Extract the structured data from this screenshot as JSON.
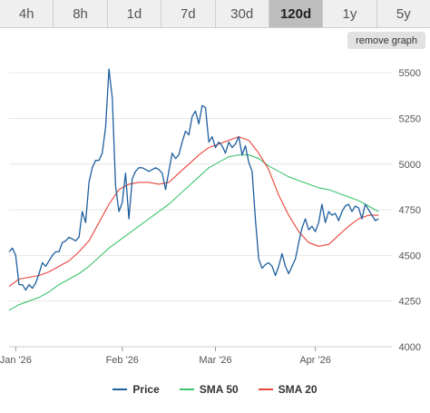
{
  "tabs": [
    {
      "label": "4h",
      "active": false
    },
    {
      "label": "8h",
      "active": false
    },
    {
      "label": "1d",
      "active": false
    },
    {
      "label": "7d",
      "active": false
    },
    {
      "label": "30d",
      "active": false
    },
    {
      "label": "120d",
      "active": true
    },
    {
      "label": "1y",
      "active": false
    },
    {
      "label": "5y",
      "active": false
    }
  ],
  "remove_graph_label": "remove graph",
  "colors": {
    "price": "#1f5f9e",
    "sma50": "#3cc46e",
    "sma20": "#e8453c",
    "grid": "#e6e6e6"
  },
  "chart_data": {
    "type": "line",
    "title": "",
    "xlabel": "",
    "ylabel": "",
    "ylim": [
      4000,
      5600
    ],
    "y_ticks": [
      4000,
      4250,
      4500,
      4750,
      5000,
      5250,
      5500
    ],
    "x_ticks": [
      {
        "label": "Jan '26",
        "x": 2
      },
      {
        "label": "Feb '26",
        "x": 34
      },
      {
        "label": "Mar '26",
        "x": 62
      },
      {
        "label": "Apr '26",
        "x": 92
      }
    ],
    "xlim": [
      0,
      115
    ],
    "legend_position": "bottom",
    "grid": true,
    "series": [
      {
        "name": "Price",
        "color": "#1f5f9e",
        "points": [
          [
            0,
            4520
          ],
          [
            1,
            4540
          ],
          [
            2,
            4500
          ],
          [
            3,
            4340
          ],
          [
            4,
            4340
          ],
          [
            5,
            4310
          ],
          [
            6,
            4340
          ],
          [
            7,
            4320
          ],
          [
            8,
            4350
          ],
          [
            9,
            4400
          ],
          [
            10,
            4460
          ],
          [
            11,
            4440
          ],
          [
            12,
            4470
          ],
          [
            13,
            4500
          ],
          [
            14,
            4520
          ],
          [
            15,
            4520
          ],
          [
            16,
            4570
          ],
          [
            17,
            4580
          ],
          [
            18,
            4600
          ],
          [
            19,
            4590
          ],
          [
            20,
            4580
          ],
          [
            21,
            4600
          ],
          [
            22,
            4740
          ],
          [
            23,
            4680
          ],
          [
            24,
            4900
          ],
          [
            25,
            4980
          ],
          [
            26,
            5020
          ],
          [
            27,
            5020
          ],
          [
            28,
            5060
          ],
          [
            29,
            5200
          ],
          [
            30,
            5520
          ],
          [
            31,
            5360
          ],
          [
            32,
            4880
          ],
          [
            33,
            4740
          ],
          [
            34,
            4790
          ],
          [
            35,
            4950
          ],
          [
            36,
            4700
          ],
          [
            37,
            4920
          ],
          [
            38,
            4960
          ],
          [
            39,
            4980
          ],
          [
            40,
            4980
          ],
          [
            41,
            4970
          ],
          [
            42,
            4960
          ],
          [
            43,
            4970
          ],
          [
            44,
            4980
          ],
          [
            45,
            4970
          ],
          [
            46,
            4950
          ],
          [
            47,
            4860
          ],
          [
            48,
            4960
          ],
          [
            49,
            5060
          ],
          [
            50,
            5030
          ],
          [
            51,
            5050
          ],
          [
            52,
            5120
          ],
          [
            53,
            5180
          ],
          [
            54,
            5160
          ],
          [
            55,
            5260
          ],
          [
            56,
            5290
          ],
          [
            57,
            5220
          ],
          [
            58,
            5320
          ],
          [
            59,
            5310
          ],
          [
            60,
            5120
          ],
          [
            61,
            5150
          ],
          [
            62,
            5090
          ],
          [
            63,
            5120
          ],
          [
            64,
            5100
          ],
          [
            65,
            5060
          ],
          [
            66,
            5120
          ],
          [
            67,
            5090
          ],
          [
            68,
            5110
          ],
          [
            69,
            5150
          ],
          [
            70,
            5050
          ],
          [
            71,
            5100
          ],
          [
            72,
            5010
          ],
          [
            73,
            4960
          ],
          [
            74,
            4700
          ],
          [
            75,
            4480
          ],
          [
            76,
            4430
          ],
          [
            77,
            4450
          ],
          [
            78,
            4460
          ],
          [
            79,
            4440
          ],
          [
            80,
            4390
          ],
          [
            81,
            4440
          ],
          [
            82,
            4510
          ],
          [
            83,
            4440
          ],
          [
            84,
            4400
          ],
          [
            85,
            4440
          ],
          [
            86,
            4480
          ],
          [
            87,
            4570
          ],
          [
            88,
            4650
          ],
          [
            89,
            4700
          ],
          [
            90,
            4640
          ],
          [
            91,
            4660
          ],
          [
            92,
            4630
          ],
          [
            93,
            4680
          ],
          [
            94,
            4780
          ],
          [
            95,
            4680
          ],
          [
            96,
            4740
          ],
          [
            97,
            4720
          ],
          [
            98,
            4730
          ],
          [
            99,
            4690
          ],
          [
            100,
            4740
          ],
          [
            101,
            4770
          ],
          [
            102,
            4780
          ],
          [
            103,
            4740
          ],
          [
            104,
            4770
          ],
          [
            105,
            4760
          ],
          [
            106,
            4700
          ],
          [
            107,
            4780
          ],
          [
            108,
            4750
          ],
          [
            109,
            4720
          ],
          [
            110,
            4690
          ],
          [
            111,
            4700
          ]
        ]
      },
      {
        "name": "SMA 50",
        "color": "#3cc46e",
        "points": [
          [
            0,
            4200
          ],
          [
            3,
            4230
          ],
          [
            6,
            4250
          ],
          [
            9,
            4270
          ],
          [
            12,
            4300
          ],
          [
            15,
            4340
          ],
          [
            18,
            4370
          ],
          [
            21,
            4400
          ],
          [
            24,
            4440
          ],
          [
            27,
            4490
          ],
          [
            30,
            4540
          ],
          [
            33,
            4580
          ],
          [
            36,
            4620
          ],
          [
            39,
            4660
          ],
          [
            42,
            4700
          ],
          [
            45,
            4740
          ],
          [
            48,
            4780
          ],
          [
            51,
            4830
          ],
          [
            54,
            4880
          ],
          [
            57,
            4930
          ],
          [
            60,
            4980
          ],
          [
            63,
            5010
          ],
          [
            66,
            5040
          ],
          [
            69,
            5050
          ],
          [
            72,
            5050
          ],
          [
            75,
            5030
          ],
          [
            78,
            4990
          ],
          [
            81,
            4960
          ],
          [
            84,
            4930
          ],
          [
            87,
            4910
          ],
          [
            90,
            4890
          ],
          [
            93,
            4870
          ],
          [
            96,
            4860
          ],
          [
            99,
            4840
          ],
          [
            102,
            4820
          ],
          [
            105,
            4800
          ],
          [
            108,
            4770
          ],
          [
            111,
            4740
          ]
        ]
      },
      {
        "name": "SMA 20",
        "color": "#e8453c",
        "points": [
          [
            0,
            4330
          ],
          [
            3,
            4370
          ],
          [
            6,
            4380
          ],
          [
            9,
            4390
          ],
          [
            12,
            4410
          ],
          [
            15,
            4440
          ],
          [
            18,
            4470
          ],
          [
            21,
            4520
          ],
          [
            24,
            4580
          ],
          [
            27,
            4680
          ],
          [
            30,
            4780
          ],
          [
            33,
            4860
          ],
          [
            36,
            4890
          ],
          [
            39,
            4900
          ],
          [
            42,
            4900
          ],
          [
            45,
            4890
          ],
          [
            48,
            4900
          ],
          [
            51,
            4950
          ],
          [
            54,
            5000
          ],
          [
            57,
            5050
          ],
          [
            60,
            5090
          ],
          [
            63,
            5110
          ],
          [
            66,
            5130
          ],
          [
            69,
            5150
          ],
          [
            72,
            5130
          ],
          [
            75,
            5060
          ],
          [
            78,
            4970
          ],
          [
            81,
            4830
          ],
          [
            84,
            4720
          ],
          [
            87,
            4630
          ],
          [
            90,
            4570
          ],
          [
            93,
            4550
          ],
          [
            96,
            4560
          ],
          [
            99,
            4610
          ],
          [
            102,
            4660
          ],
          [
            105,
            4700
          ],
          [
            108,
            4720
          ],
          [
            111,
            4720
          ]
        ]
      }
    ]
  }
}
